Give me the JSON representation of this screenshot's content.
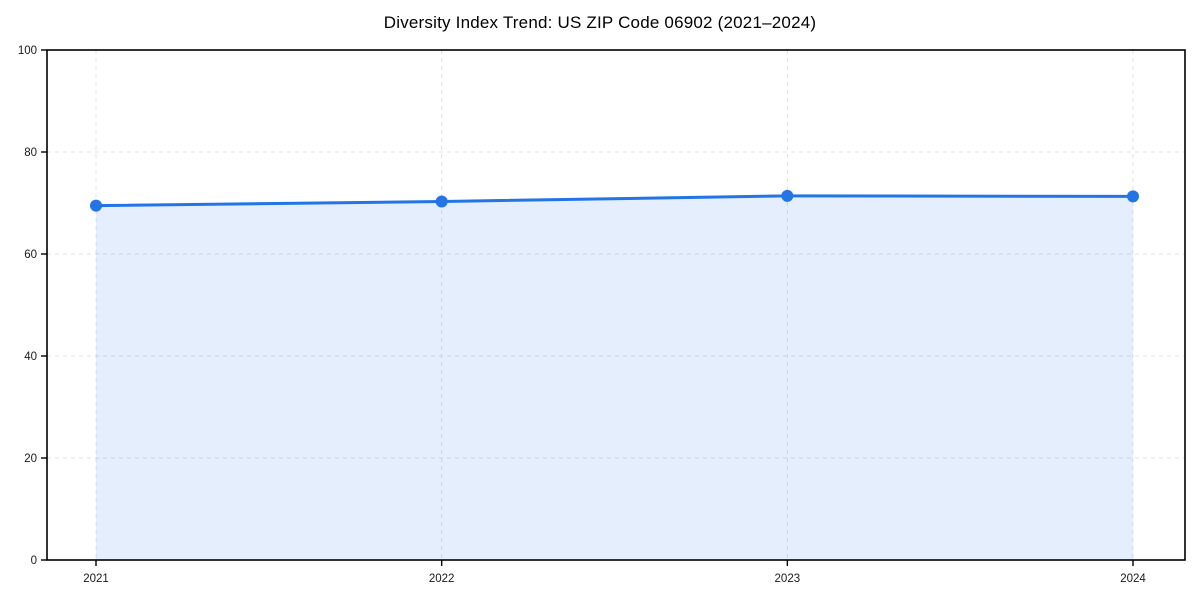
{
  "title": "Diversity Index Trend: US ZIP Code 06902 (2021–2024)",
  "colors": {
    "line": "#2374e4",
    "marker": "#2374e4",
    "fill": "rgba(35,116,228,0.12)",
    "grid": "#e0e0e0",
    "spine": "#000000",
    "tick_label": "#1a1a1a",
    "background": "#ffffff"
  },
  "chart_data": {
    "type": "area",
    "title": "Diversity Index Trend: US ZIP Code 06902 (2021–2024)",
    "categories": [
      "2021",
      "2022",
      "2023",
      "2024"
    ],
    "series": [
      {
        "name": "Diversity Index",
        "values": [
          69.5,
          70.3,
          71.4,
          71.3
        ]
      }
    ],
    "xlabel": "",
    "ylabel": "",
    "ylim": [
      0,
      100
    ],
    "yticks": [
      0,
      20,
      40,
      60,
      80,
      100
    ],
    "grid": true,
    "grid_style": "dashed",
    "legend": false,
    "marker": "circle",
    "fill_under_line": true
  }
}
